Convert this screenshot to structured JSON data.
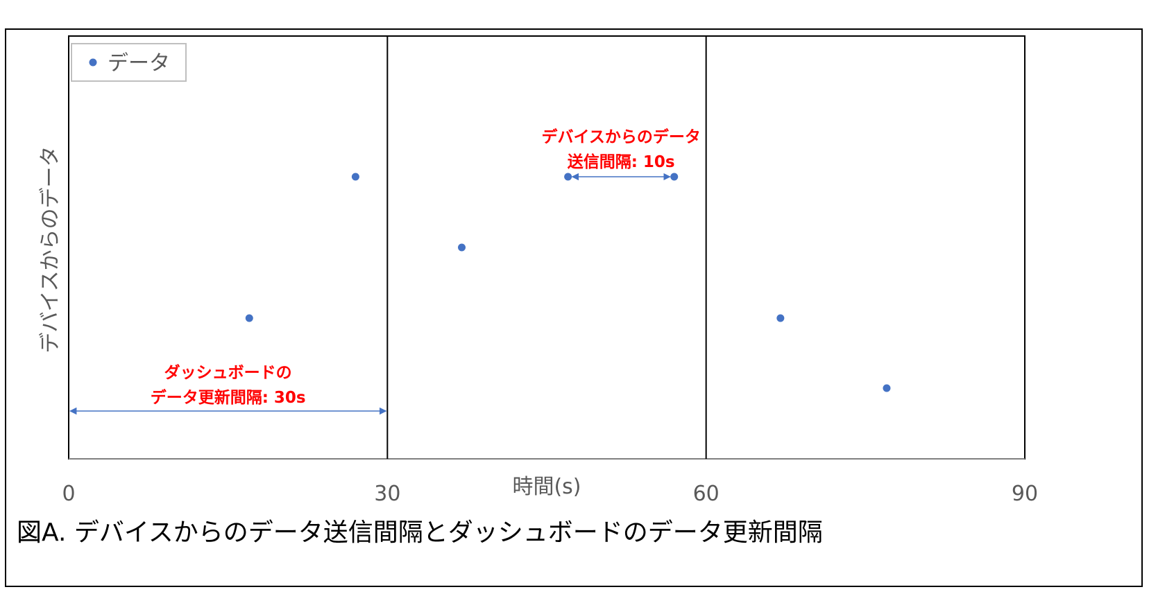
{
  "caption": "図A. デバイスからのデータ送信間隔とダッシュボードのデータ更新間隔",
  "colors": {
    "point": "#4472C4",
    "annotation": "#FF0000",
    "frame": "#000000"
  },
  "chart_data": {
    "type": "scatter",
    "xlabel": "時間(s)",
    "ylabel": "デバイスからのデータ",
    "xlim": [
      0,
      90
    ],
    "xticks": [
      "0",
      "30",
      "60",
      "90"
    ],
    "legend": {
      "position": "top-left",
      "entries": [
        "データ"
      ]
    },
    "series": [
      {
        "name": "データ",
        "points": [
          {
            "x": 17,
            "y": 2
          },
          {
            "x": 27,
            "y": 4
          },
          {
            "x": 37,
            "y": 3
          },
          {
            "x": 47,
            "y": 4
          },
          {
            "x": 57,
            "y": 4
          },
          {
            "x": 67,
            "y": 2
          },
          {
            "x": 77,
            "y": 1
          }
        ]
      }
    ],
    "vertical_lines": [
      30,
      60
    ],
    "annotations": [
      {
        "lines": [
          "デバイスからのデータ",
          "送信間隔: 10s"
        ],
        "from": 47,
        "to": 57,
        "y": 4
      },
      {
        "lines": [
          "ダッシュボードの",
          "データ更新間隔: 30s"
        ],
        "from": 0,
        "to": 30,
        "y": 0.6
      }
    ]
  }
}
